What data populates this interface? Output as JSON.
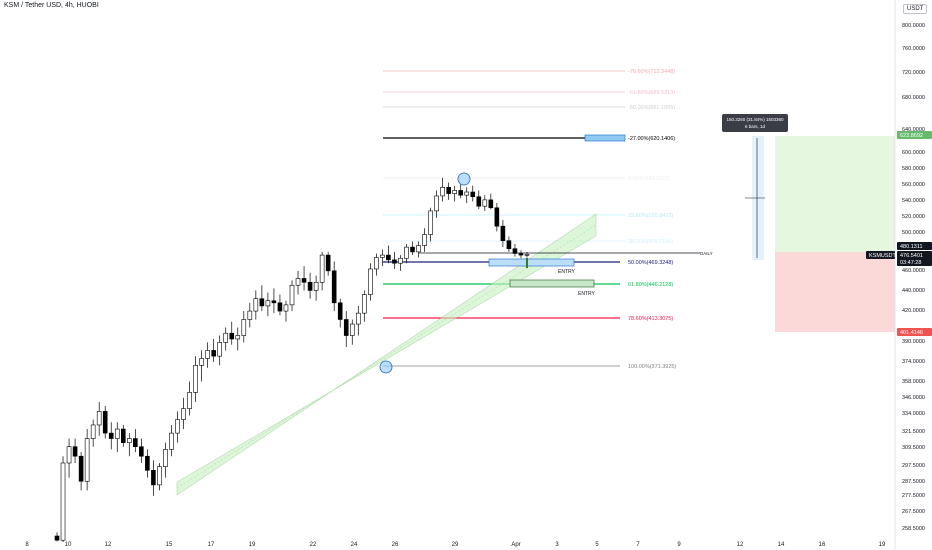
{
  "header": {
    "title": "KSM / Tether USD, 4h, HUOBI",
    "currency": "USDT"
  },
  "chart_data": {
    "type": "candlestick",
    "price_axis": {
      "ticks": [
        "800.0000",
        "760.0000",
        "720.0000",
        "680.0000",
        "640.0000",
        "620.0000",
        "600.0000",
        "580.0000",
        "560.0000",
        "540.0000",
        "520.0000",
        "500.0000",
        "460.0000",
        "440.0000",
        "420.0000",
        "390.0000",
        "374.0000",
        "358.0000",
        "346.0000",
        "334.0000",
        "321.5000",
        "309.5000",
        "297.5000",
        "287.5000",
        "277.5000",
        "267.5000",
        "258.5000"
      ]
    },
    "time_axis": {
      "ticks": [
        "8",
        "10",
        "12",
        "15",
        "17",
        "19",
        "22",
        "24",
        "26",
        "29",
        "Apr",
        "3",
        "5",
        "7",
        "9",
        "12",
        "14",
        "16",
        "19"
      ]
    },
    "price_badges": [
      {
        "label": "623.8692",
        "color": "#66bb6a"
      },
      {
        "label": "480.1311",
        "color": "#131722"
      },
      {
        "label": "476.5401",
        "color": "#131722"
      },
      {
        "label": "03:47:28",
        "color": "#131722"
      },
      {
        "label": "KSMUSDT",
        "color": "#131722"
      },
      {
        "label": "401.4146",
        "color": "#ef5350"
      }
    ],
    "fib_levels": [
      {
        "label": "-78.60%(712.3448)",
        "color": "#e57373"
      },
      {
        "label": "-61.80%(689.5213)",
        "color": "#f48fb1"
      },
      {
        "label": "-50.00%(661.1895)",
        "color": "#b0b0b0"
      },
      {
        "label": "-27.00%(620.1406)",
        "color": "#000000"
      },
      {
        "label": "0.00%(567.8311)",
        "color": "#e0e0e0"
      },
      {
        "label": "23.60%(520.8412)",
        "color": "#80deea"
      },
      {
        "label": "38.20%(495.7145)",
        "color": "#b3e5fc"
      },
      {
        "label": "50.00%(469.3248)",
        "color": "#1a237e"
      },
      {
        "label": "61.80%(446.2128)",
        "color": "#00c853"
      },
      {
        "label": "78.60%(413.3075)",
        "color": "#ff1744"
      },
      {
        "label": "100.00%(371.3925)",
        "color": "#808080"
      }
    ],
    "annotations": {
      "entry_1": "ENTRY",
      "entry_2": "ENTRY",
      "daily": "DAILY",
      "measure_line1": "150.3260 (31.84%) 1503360",
      "measure_line2": "6 bars, 1d"
    },
    "candles": [
      [
        260,
        262,
        251,
        253
      ],
      [
        253,
        305,
        250,
        300
      ],
      [
        300,
        318,
        292,
        312
      ],
      [
        312,
        318,
        300,
        305
      ],
      [
        305,
        308,
        285,
        290
      ],
      [
        290,
        325,
        285,
        318
      ],
      [
        318,
        332,
        312,
        328
      ],
      [
        328,
        345,
        320,
        338
      ],
      [
        338,
        342,
        318,
        322
      ],
      [
        322,
        330,
        310,
        318
      ],
      [
        318,
        330,
        308,
        325
      ],
      [
        325,
        328,
        312,
        315
      ],
      [
        315,
        322,
        305,
        318
      ],
      [
        318,
        325,
        308,
        312
      ],
      [
        312,
        318,
        300,
        305
      ],
      [
        305,
        310,
        292,
        296
      ],
      [
        296,
        302,
        282,
        288
      ],
      [
        288,
        300,
        285,
        298
      ],
      [
        298,
        315,
        292,
        310
      ],
      [
        310,
        328,
        305,
        322
      ],
      [
        322,
        338,
        315,
        332
      ],
      [
        332,
        348,
        325,
        340
      ],
      [
        340,
        360,
        335,
        352
      ],
      [
        352,
        380,
        345,
        372
      ],
      [
        372,
        385,
        360,
        378
      ],
      [
        378,
        392,
        370,
        385
      ],
      [
        385,
        395,
        375,
        380
      ],
      [
        380,
        398,
        372,
        392
      ],
      [
        392,
        405,
        385,
        400
      ],
      [
        400,
        410,
        390,
        395
      ],
      [
        395,
        405,
        385,
        398
      ],
      [
        398,
        420,
        392,
        412
      ],
      [
        412,
        428,
        405,
        420
      ],
      [
        420,
        440,
        412,
        432
      ],
      [
        432,
        445,
        420,
        425
      ],
      [
        425,
        438,
        415,
        430
      ],
      [
        430,
        442,
        418,
        428
      ],
      [
        428,
        436,
        416,
        420
      ],
      [
        420,
        430,
        410,
        426
      ],
      [
        426,
        450,
        420,
        445
      ],
      [
        445,
        460,
        436,
        452
      ],
      [
        452,
        465,
        440,
        448
      ],
      [
        448,
        458,
        432,
        440
      ],
      [
        440,
        455,
        430,
        448
      ],
      [
        448,
        482,
        440,
        478
      ],
      [
        478,
        482,
        455,
        460
      ],
      [
        460,
        470,
        420,
        428
      ],
      [
        428,
        432,
        405,
        412
      ],
      [
        412,
        420,
        388,
        398
      ],
      [
        398,
        412,
        390,
        408
      ],
      [
        408,
        425,
        398,
        418
      ],
      [
        418,
        440,
        410,
        436
      ],
      [
        436,
        468,
        430,
        462
      ],
      [
        462,
        480,
        455,
        475
      ],
      [
        475,
        485,
        465,
        478
      ],
      [
        478,
        490,
        468,
        472
      ],
      [
        472,
        482,
        462,
        468
      ],
      [
        468,
        478,
        460,
        474
      ],
      [
        474,
        492,
        468,
        488
      ],
      [
        488,
        495,
        478,
        482
      ],
      [
        482,
        495,
        475,
        490
      ],
      [
        490,
        508,
        482,
        502
      ],
      [
        502,
        530,
        495,
        526
      ],
      [
        526,
        552,
        518,
        545
      ],
      [
        545,
        568,
        538,
        556
      ],
      [
        556,
        562,
        540,
        548
      ],
      [
        548,
        558,
        538,
        552
      ],
      [
        552,
        560,
        542,
        546
      ],
      [
        546,
        556,
        536,
        550
      ],
      [
        550,
        558,
        538,
        544
      ],
      [
        544,
        552,
        528,
        532
      ],
      [
        532,
        546,
        526,
        540
      ],
      [
        540,
        548,
        528,
        530
      ],
      [
        530,
        536,
        505,
        510
      ],
      [
        510,
        516,
        488,
        496
      ],
      [
        496,
        500,
        482,
        486
      ],
      [
        486,
        492,
        476,
        480
      ],
      [
        480,
        484,
        474,
        478
      ],
      [
        478,
        482,
        475,
        479
      ]
    ],
    "channel": {
      "color": "#c8f0c0"
    },
    "tp_zone_color": "#e6f7e0",
    "sl_zone_color": "#fbd9d9",
    "candle_color": "#000000"
  }
}
